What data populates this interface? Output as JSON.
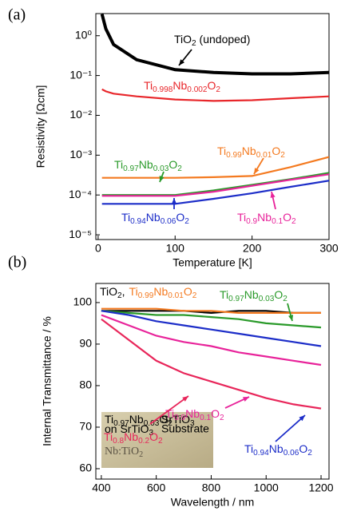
{
  "chart_data": [
    {
      "type": "line",
      "panel_label": "(a)",
      "xlabel": "Temperature [K]",
      "ylabel": "Resistivity [Ωcm]",
      "log_y": true,
      "xlim": [
        -3,
        300
      ],
      "ylim": [
        7.6e-06,
        3.6
      ],
      "xticks": [
        0,
        100,
        200,
        300
      ],
      "yticks": [
        {
          "value": 1,
          "label": "10⁰"
        },
        {
          "value": 0.1,
          "label": "10⁻¹"
        },
        {
          "value": 0.01,
          "label": "10⁻²"
        },
        {
          "value": 0.001,
          "label": "10⁻³"
        },
        {
          "value": 0.0001,
          "label": "10⁻⁴"
        },
        {
          "value": 1e-05,
          "label": "10⁻⁵"
        }
      ],
      "x": [
        5,
        10,
        20,
        50,
        100,
        150,
        200,
        250,
        300
      ],
      "series": [
        {
          "name": "TiO2 (undoped)",
          "color": "#000000",
          "values": [
            3.5,
            1.5,
            0.6,
            0.25,
            0.14,
            0.12,
            0.11,
            0.11,
            0.12
          ]
        },
        {
          "name": "Ti0.998Nb0.002O2",
          "color": "#e8262a",
          "values": [
            0.045,
            0.04,
            0.035,
            0.03,
            0.025,
            0.023,
            0.024,
            0.027,
            0.03
          ]
        },
        {
          "name": "Ti0.99Nb0.01O2",
          "color": "#f47a20",
          "values": [
            0.00027,
            0.00027,
            0.00027,
            0.00027,
            0.00027,
            0.00028,
            0.0003,
            0.0005,
            0.0009
          ]
        },
        {
          "name": "Ti0.97Nb0.03O2",
          "color": "#2a9a2a",
          "values": [
            0.0001,
            0.0001,
            0.0001,
            0.0001,
            0.0001,
            0.00013,
            0.00018,
            0.00025,
            0.00036
          ]
        },
        {
          "name": "Ti0.94Nb0.06O2",
          "color": "#1c2dc8",
          "values": [
            6e-05,
            6e-05,
            6e-05,
            6e-05,
            6e-05,
            8e-05,
            0.00011,
            0.00016,
            0.00023
          ]
        },
        {
          "name": "Ti0.9Nb0.1O2",
          "color": "#e8239a",
          "values": [
            9.5e-05,
            9.5e-05,
            9.5e-05,
            9.5e-05,
            9.5e-05,
            0.00012,
            0.00017,
            0.00024,
            0.00033
          ]
        }
      ]
    },
    {
      "type": "line",
      "panel_label": "(b)",
      "xlabel": "Wavelength / nm",
      "ylabel": "Internal Transmittance / %",
      "log_y": false,
      "xlim": [
        380,
        1229
      ],
      "ylim": [
        57.5,
        104.6
      ],
      "xticks": [
        400,
        600,
        800,
        1000,
        1200
      ],
      "yticks": [
        60,
        70,
        80,
        90,
        100
      ],
      "x": [
        400,
        500,
        600,
        700,
        800,
        900,
        1000,
        1100,
        1200
      ],
      "series": [
        {
          "name": "TiO2,",
          "color": "#000000",
          "values": [
            98,
            98,
            98,
            98,
            97.5,
            98,
            98,
            97.5,
            97.5
          ]
        },
        {
          "name": "Ti0.99Nb0.01O2",
          "color": "#f47a20",
          "values": [
            98.5,
            98.5,
            98.5,
            98,
            98,
            97.5,
            97.5,
            97.5,
            97.5
          ]
        },
        {
          "name": "Ti0.97Nb0.03O2",
          "color": "#2a9a2a",
          "values": [
            98,
            97.5,
            97,
            97,
            96.5,
            96,
            95,
            94.5,
            94
          ]
        },
        {
          "name": "Ti0.94Nb0.06O2",
          "color": "#1c2dc8",
          "values": [
            98,
            97,
            95.5,
            94.5,
            93.5,
            92.5,
            91.5,
            90.5,
            89.5
          ]
        },
        {
          "name": "Ti0.9Nb0.1O2",
          "color": "#e8239a",
          "values": [
            97,
            94.5,
            92,
            90.5,
            89.5,
            88,
            87,
            86,
            85
          ]
        },
        {
          "name": "Ti0.8Nb0.2O2",
          "color": "#e8265a",
          "values": [
            96,
            91,
            86,
            83,
            81,
            79,
            77,
            75.5,
            74.5
          ]
        }
      ],
      "inset_texts": [
        "Ti0.97Nb0.03O2",
        "on SrTiO3",
        "SrTiO3",
        "Substrate",
        "Nb:TiO2"
      ]
    }
  ]
}
